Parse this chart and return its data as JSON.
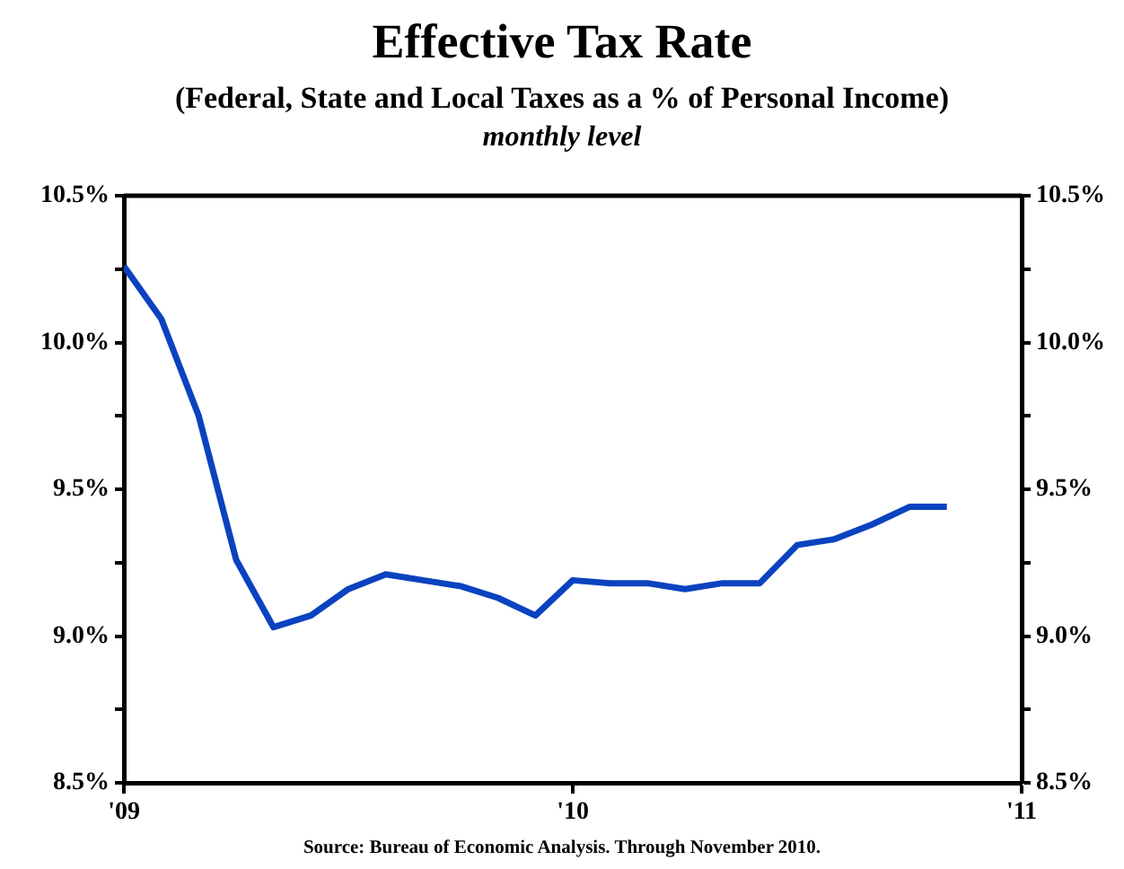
{
  "chart_data": {
    "type": "line",
    "title": "Effective Tax Rate",
    "subtitle": "(Federal, State and Local Taxes as a % of Personal Income)",
    "annotations": [
      "monthly level",
      "Source: Bureau of Economic Analysis. Through November 2010."
    ],
    "x": [
      "2009-01",
      "2009-02",
      "2009-03",
      "2009-04",
      "2009-05",
      "2009-06",
      "2009-07",
      "2009-08",
      "2009-09",
      "2009-10",
      "2009-11",
      "2009-12",
      "2010-01",
      "2010-02",
      "2010-03",
      "2010-04",
      "2010-05",
      "2010-06",
      "2010-07",
      "2010-08",
      "2010-09",
      "2010-10",
      "2010-11"
    ],
    "series": [
      {
        "color": "#0a42c0",
        "values": [
          10.26,
          10.08,
          9.75,
          9.26,
          9.03,
          9.07,
          9.16,
          9.21,
          9.19,
          9.17,
          9.13,
          9.07,
          9.19,
          9.18,
          9.18,
          9.16,
          9.18,
          9.18,
          9.31,
          9.33,
          9.38,
          9.44,
          9.44
        ]
      }
    ],
    "xlim": [
      "2009-01",
      "2011-01"
    ],
    "xticks": [
      {
        "value": "2009-01",
        "label": "'09"
      },
      {
        "value": "2010-01",
        "label": "'10"
      },
      {
        "value": "2011-01",
        "label": "'11"
      }
    ],
    "ylim": [
      8.5,
      10.5
    ],
    "yticks": [
      {
        "value": 8.5,
        "label": "8.5%"
      },
      {
        "value": 8.75,
        "label": null
      },
      {
        "value": 9.0,
        "label": "9.0%"
      },
      {
        "value": 9.25,
        "label": null
      },
      {
        "value": 9.5,
        "label": "9.5%"
      },
      {
        "value": 9.75,
        "label": null
      },
      {
        "value": 10.0,
        "label": "10.0%"
      },
      {
        "value": 10.25,
        "label": null
      },
      {
        "value": 10.5,
        "label": "10.5%"
      }
    ],
    "y2lim": [
      8.5,
      10.5
    ],
    "y2ticks": [
      {
        "value": 8.5,
        "label": "8.5%"
      },
      {
        "value": 8.75,
        "label": null
      },
      {
        "value": 9.0,
        "label": "9.0%"
      },
      {
        "value": 9.25,
        "label": null
      },
      {
        "value": 9.5,
        "label": "9.5%"
      },
      {
        "value": 9.75,
        "label": null
      },
      {
        "value": 10.0,
        "label": "10.0%"
      },
      {
        "value": 10.25,
        "label": null
      },
      {
        "value": 10.5,
        "label": "10.5%"
      }
    ],
    "grid": false,
    "legend": false,
    "marker": "none",
    "line_style": "solid"
  }
}
